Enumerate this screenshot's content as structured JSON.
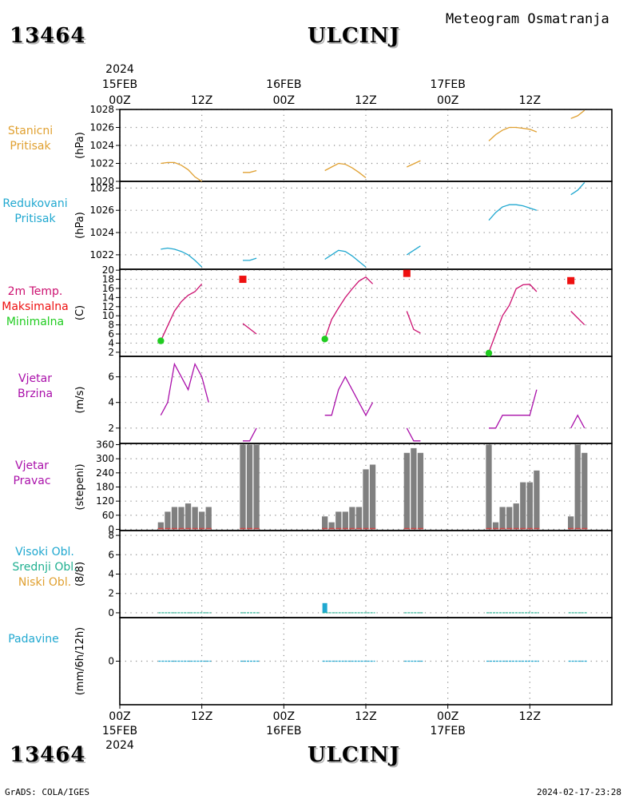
{
  "header": {
    "station_id": "13464",
    "station_name": "ULCINJ",
    "title": "Meteogram Osmatranja"
  },
  "footer": {
    "credit": "GrADS: COLA/IGES",
    "timestamp": "2024-02-17-23:28",
    "station_id": "13464",
    "station_name": "ULCINJ"
  },
  "time_axis": {
    "year": "2024",
    "date_labels": [
      "15FEB",
      "16FEB",
      "17FEB"
    ],
    "hour_labels": [
      "00Z",
      "12Z",
      "00Z",
      "12Z",
      "00Z",
      "12Z"
    ],
    "hours": [
      0,
      12,
      24,
      36,
      48,
      60
    ]
  },
  "panel_labels": {
    "station_pressure": [
      "Stanicni",
      "Pritisak"
    ],
    "reduced_pressure": [
      "Redukovani",
      "Pritisak"
    ],
    "temperature": [
      "2m Temp.",
      "Maksimalna",
      "Minimalna"
    ],
    "wind_speed": [
      "Vjetar",
      "Brzina"
    ],
    "wind_dir": [
      "Vjetar",
      "Pravac"
    ],
    "clouds": [
      "Visoki Obl.",
      "Srednji Obl.",
      "Niski Obl."
    ],
    "precip": [
      "Padavine"
    ]
  },
  "units": {
    "station_pressure": "(hPa)",
    "reduced_pressure": "(hPa)",
    "temperature": "(C)",
    "wind_speed": "(m/s)",
    "wind_dir": "(stepeni)",
    "clouds": "(8/8)",
    "precip": "(mm/6h/12h)"
  },
  "colors": {
    "station_pressure": "#e0a030",
    "reduced_pressure": "#20a8d0",
    "temperature": "#cc1070",
    "max_temp": "#ee1010",
    "min_temp": "#20cc20",
    "wind": "#aa10aa",
    "wind_dir_bar": "#808080",
    "wind_dir_base": "#cc4444",
    "high_cloud": "#20a8d0",
    "mid_cloud": "#20b090",
    "low_cloud": "#e0a030",
    "precip": "#20a8d0"
  },
  "chart_data": [
    {
      "type": "line",
      "panel": "station_pressure",
      "ylim": [
        1020,
        1028
      ],
      "yticks": [
        1020,
        1022,
        1024,
        1026,
        1028
      ],
      "series": [
        {
          "values": [
            [
              6,
              1022.0
            ],
            [
              7,
              1022.1
            ],
            [
              8,
              1022.1
            ],
            [
              9,
              1021.8
            ],
            [
              10,
              1021.3
            ],
            [
              11,
              1020.5
            ],
            [
              12,
              1020.0
            ]
          ]
        },
        {
          "values": [
            [
              18,
              1021.0
            ],
            [
              19,
              1021.0
            ],
            [
              20,
              1021.2
            ]
          ]
        },
        {
          "values": [
            [
              30,
              1021.2
            ],
            [
              31,
              1021.6
            ],
            [
              32,
              1022.0
            ],
            [
              33,
              1021.9
            ],
            [
              34,
              1021.5
            ],
            [
              35,
              1021.0
            ],
            [
              36,
              1020.4
            ]
          ]
        },
        {
          "values": [
            [
              42,
              1021.6
            ],
            [
              44,
              1022.3
            ]
          ]
        },
        {
          "values": [
            [
              54,
              1024.5
            ],
            [
              55,
              1025.2
            ],
            [
              56,
              1025.7
            ],
            [
              57,
              1026.0
            ],
            [
              58,
              1026.0
            ],
            [
              59,
              1025.9
            ],
            [
              60,
              1025.8
            ],
            [
              61,
              1025.5
            ]
          ]
        },
        {
          "values": [
            [
              66,
              1027.0
            ],
            [
              67,
              1027.3
            ],
            [
              68,
              1027.9
            ]
          ]
        }
      ]
    },
    {
      "type": "line",
      "panel": "reduced_pressure",
      "ylim": [
        1020.7,
        1028.6
      ],
      "yticks": [
        1022,
        1024,
        1026,
        1028
      ],
      "series": [
        {
          "values": [
            [
              6,
              1022.5
            ],
            [
              7,
              1022.6
            ],
            [
              8,
              1022.5
            ],
            [
              9,
              1022.3
            ],
            [
              10,
              1022.0
            ],
            [
              11,
              1021.5
            ],
            [
              12,
              1020.9
            ]
          ]
        },
        {
          "values": [
            [
              18,
              1021.5
            ],
            [
              19,
              1021.5
            ],
            [
              20,
              1021.7
            ]
          ]
        },
        {
          "values": [
            [
              30,
              1021.6
            ],
            [
              31,
              1022.0
            ],
            [
              32,
              1022.4
            ],
            [
              33,
              1022.3
            ],
            [
              34,
              1021.9
            ],
            [
              35,
              1021.4
            ],
            [
              36,
              1020.9
            ]
          ]
        },
        {
          "values": [
            [
              42,
              1022.0
            ],
            [
              44,
              1022.8
            ]
          ]
        },
        {
          "values": [
            [
              54,
              1025.1
            ],
            [
              55,
              1025.8
            ],
            [
              56,
              1026.3
            ],
            [
              57,
              1026.5
            ],
            [
              58,
              1026.5
            ],
            [
              59,
              1026.4
            ],
            [
              60,
              1026.2
            ],
            [
              61,
              1026.0
            ]
          ]
        },
        {
          "values": [
            [
              66,
              1027.4
            ],
            [
              67,
              1027.8
            ],
            [
              68,
              1028.5
            ]
          ]
        }
      ]
    },
    {
      "type": "line",
      "panel": "temperature",
      "ylim": [
        1.1,
        20.2
      ],
      "yticks": [
        2,
        4,
        6,
        8,
        10,
        12,
        14,
        16,
        18,
        20
      ],
      "series": [
        {
          "values": [
            [
              6,
              4.5
            ],
            [
              7,
              7.8
            ],
            [
              8,
              11.0
            ],
            [
              9,
              13.1
            ],
            [
              10,
              14.5
            ],
            [
              11,
              15.3
            ],
            [
              12,
              17.0
            ]
          ]
        },
        {
          "values": [
            [
              18,
              8.3
            ],
            [
              20,
              6.0
            ]
          ]
        },
        {
          "values": [
            [
              30,
              4.9
            ],
            [
              31,
              9.2
            ],
            [
              32,
              11.7
            ],
            [
              33,
              14.0
            ],
            [
              34,
              15.9
            ],
            [
              35,
              17.6
            ],
            [
              36,
              18.5
            ],
            [
              37,
              17.0
            ]
          ]
        },
        {
          "values": [
            [
              42,
              11.0
            ],
            [
              43,
              7.0
            ],
            [
              44,
              6.2
            ]
          ]
        },
        {
          "values": [
            [
              54,
              2.0
            ],
            [
              55,
              6.0
            ],
            [
              56,
              10.0
            ],
            [
              57,
              12.3
            ],
            [
              58,
              15.9
            ],
            [
              59,
              16.8
            ],
            [
              60,
              16.9
            ],
            [
              61,
              15.3
            ]
          ]
        },
        {
          "values": [
            [
              66,
              11.0
            ],
            [
              68,
              8.0
            ]
          ]
        }
      ],
      "max_points": [
        [
          18,
          18.0
        ],
        [
          42,
          19.3
        ],
        [
          66,
          17.7
        ]
      ],
      "min_points": [
        [
          6,
          4.5
        ],
        [
          30,
          4.9
        ],
        [
          54,
          1.8
        ]
      ]
    },
    {
      "type": "line",
      "panel": "wind_speed",
      "ylim": [
        0.8,
        7.6
      ],
      "yticks": [
        2,
        4,
        6
      ],
      "series": [
        {
          "values": [
            [
              6,
              3
            ],
            [
              7,
              4
            ],
            [
              8,
              7
            ],
            [
              9,
              6
            ],
            [
              10,
              5
            ],
            [
              11,
              7
            ],
            [
              12,
              6
            ],
            [
              13,
              4
            ]
          ]
        },
        {
          "values": [
            [
              18,
              1
            ],
            [
              19,
              1
            ],
            [
              20,
              2
            ]
          ]
        },
        {
          "values": [
            [
              30,
              3
            ],
            [
              31,
              3
            ],
            [
              32,
              5
            ],
            [
              33,
              6
            ],
            [
              34,
              5
            ],
            [
              35,
              4
            ],
            [
              36,
              3
            ],
            [
              37,
              4
            ]
          ]
        },
        {
          "values": [
            [
              42,
              2
            ],
            [
              43,
              1
            ],
            [
              44,
              1
            ]
          ]
        },
        {
          "values": [
            [
              54,
              2
            ],
            [
              55,
              2
            ],
            [
              56,
              3
            ],
            [
              57,
              3
            ],
            [
              58,
              3
            ],
            [
              59,
              3
            ],
            [
              60,
              3
            ],
            [
              61,
              5
            ]
          ]
        },
        {
          "values": [
            [
              66,
              2
            ],
            [
              67,
              3
            ],
            [
              68,
              2
            ]
          ]
        }
      ]
    },
    {
      "type": "bar",
      "panel": "wind_dir",
      "ylim": [
        -5,
        365
      ],
      "yticks": [
        0,
        60,
        120,
        180,
        240,
        300,
        360
      ],
      "hours": [
        6,
        7,
        8,
        9,
        10,
        11,
        12,
        13,
        18,
        19,
        20,
        30,
        31,
        32,
        33,
        34,
        35,
        36,
        37,
        42,
        43,
        44,
        54,
        55,
        56,
        57,
        58,
        59,
        60,
        61,
        66,
        67,
        68
      ],
      "values": [
        30,
        75,
        95,
        95,
        110,
        95,
        75,
        95,
        360,
        360,
        360,
        55,
        30,
        75,
        75,
        95,
        95,
        255,
        275,
        325,
        345,
        325,
        360,
        30,
        95,
        95,
        110,
        200,
        200,
        250,
        55,
        360,
        325
      ]
    },
    {
      "type": "bar",
      "panel": "clouds",
      "ylim": [
        -0.5,
        8.5
      ],
      "yticks": [
        0,
        2,
        4,
        6,
        8
      ],
      "series": [
        {
          "name": "Visoki Obl.",
          "values": [
            [
              30,
              1.0
            ]
          ]
        },
        {
          "name": "Srednji Obl.",
          "values": []
        },
        {
          "name": "Niski Obl.",
          "values": []
        }
      ]
    },
    {
      "type": "bar",
      "panel": "precip",
      "ylim": [
        -2.2,
        2.2
      ],
      "yticks": [
        0
      ],
      "values": []
    }
  ]
}
